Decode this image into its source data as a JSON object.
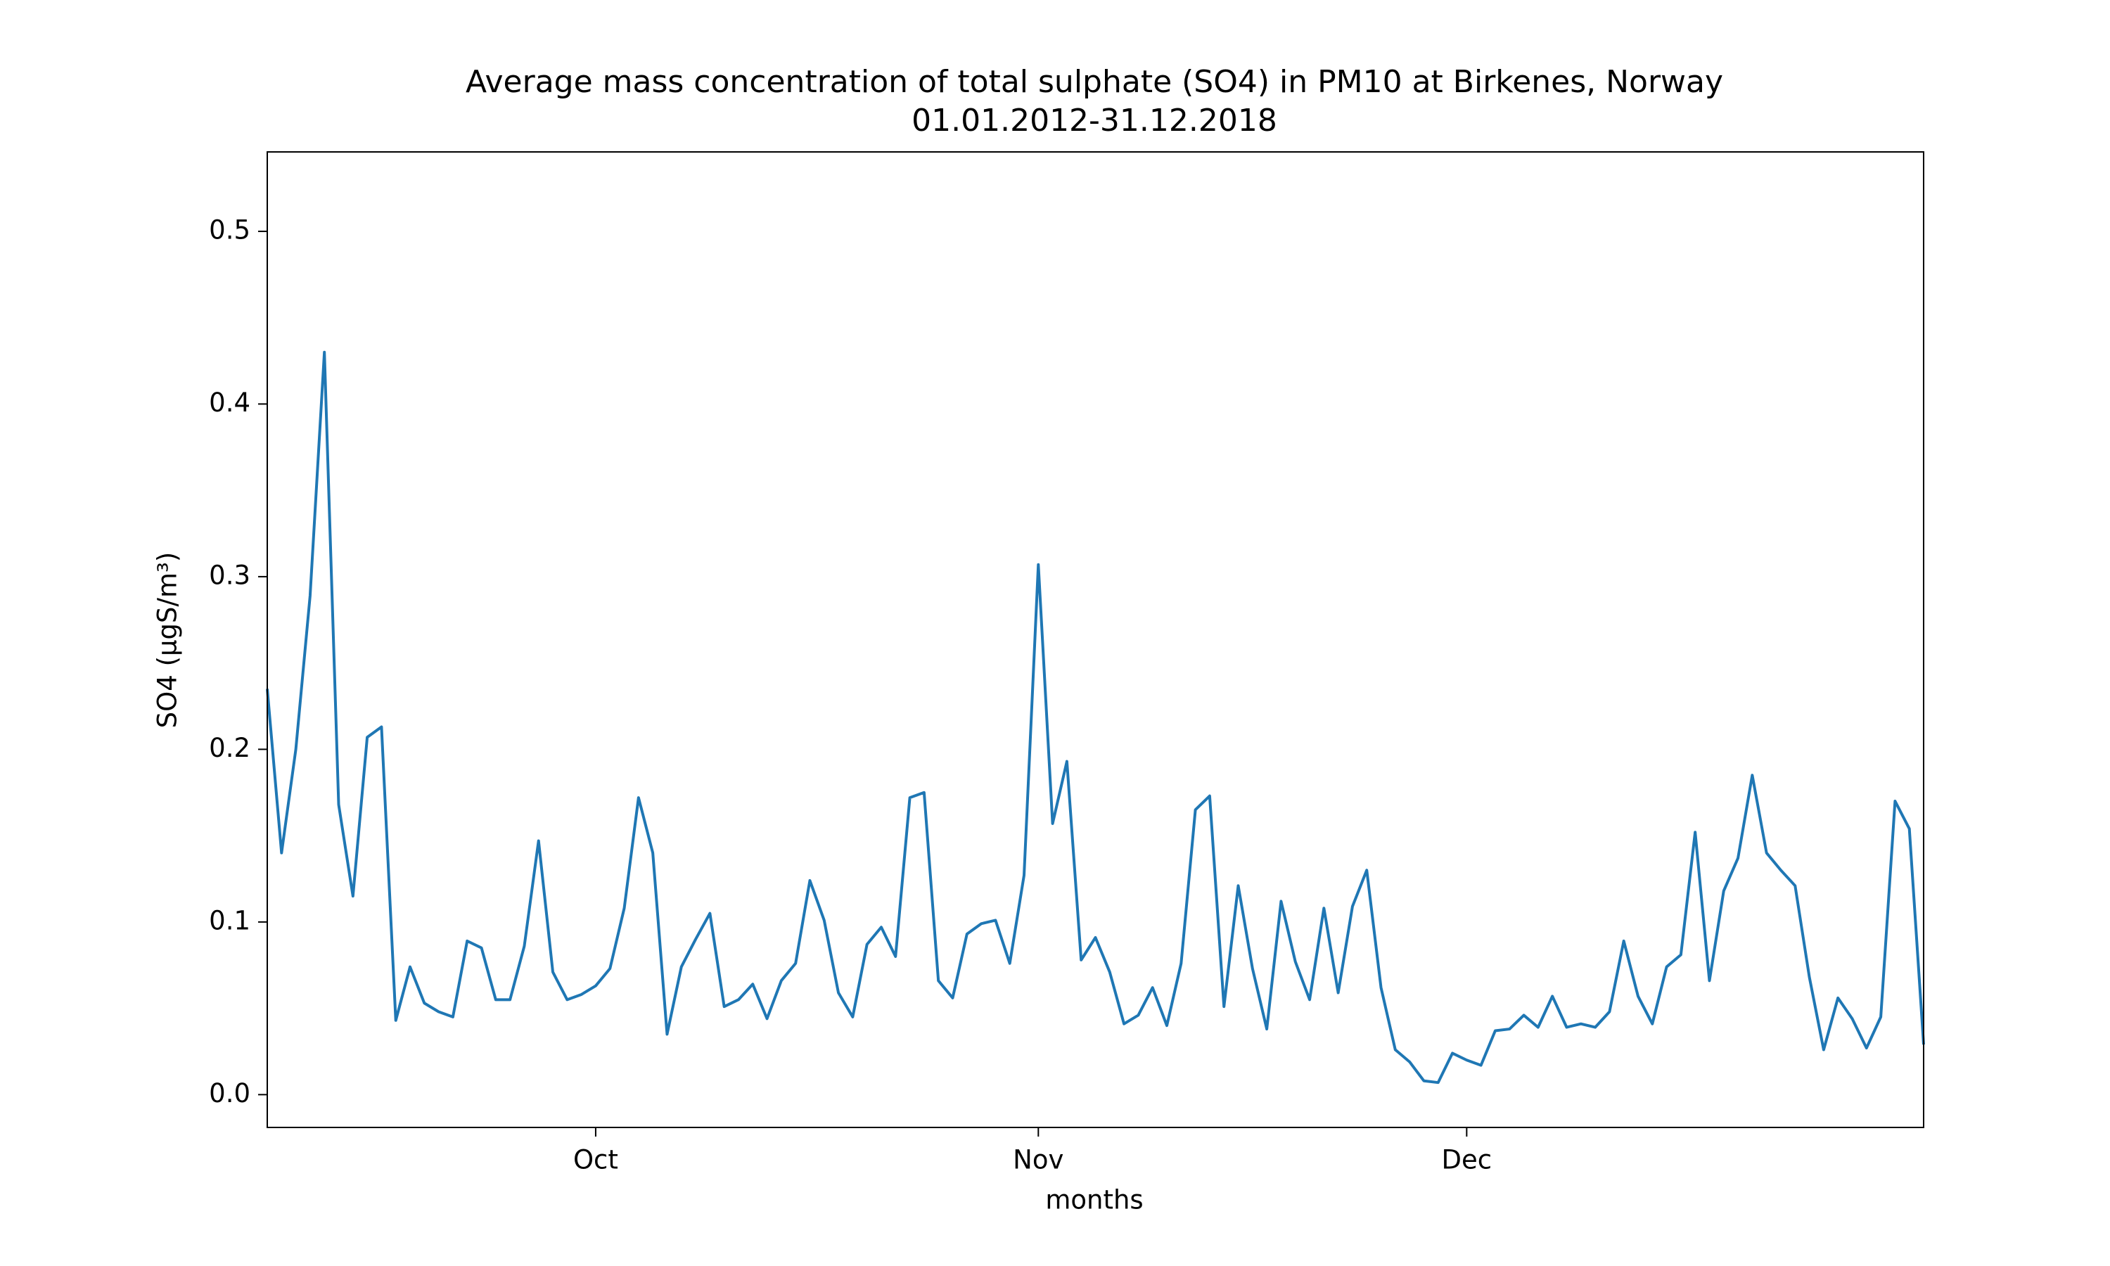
{
  "chart_data": {
    "type": "line",
    "title": "Average mass concentration of total sulphate (SO4) in PM10 at Birkenes, Norway",
    "subtitle": "01.01.2012-31.12.2018",
    "x_label": "months",
    "y_label": "SO4 (μgS/m³)",
    "x": [
      0,
      1,
      2,
      3,
      4,
      5,
      6,
      7,
      8,
      9,
      10,
      11,
      12,
      13,
      14,
      15,
      16,
      17,
      18,
      19,
      20,
      21,
      22,
      23,
      24,
      25,
      26,
      27,
      28,
      29,
      30,
      31,
      32,
      33,
      34,
      35,
      36,
      37,
      38,
      39,
      40,
      41,
      42,
      43,
      44,
      45,
      46,
      47,
      48,
      49,
      50,
      51,
      52,
      53,
      54,
      55,
      56,
      57,
      58,
      59,
      60,
      61,
      62,
      63,
      64,
      65,
      66,
      67,
      68,
      69,
      70,
      71,
      72,
      73,
      74,
      75,
      76,
      77,
      78,
      79,
      80,
      81,
      82,
      83,
      84,
      85,
      86,
      87,
      88,
      89,
      90,
      91,
      92,
      93,
      94,
      95,
      96,
      97,
      98,
      99,
      100,
      101,
      102,
      103,
      104,
      105,
      106,
      107,
      108,
      109,
      110,
      111,
      112,
      113,
      114,
      115,
      116
    ],
    "series": [
      {
        "name": "SO4",
        "color": "#1f77b4",
        "values": [
          0.235,
          0.14,
          0.2,
          0.289,
          0.43,
          0.168,
          0.115,
          0.207,
          0.213,
          0.043,
          0.074,
          0.053,
          0.048,
          0.045,
          0.089,
          0.085,
          0.055,
          0.055,
          0.086,
          0.147,
          0.071,
          0.055,
          0.058,
          0.063,
          0.073,
          0.108,
          0.172,
          0.14,
          0.035,
          0.074,
          0.09,
          0.105,
          0.051,
          0.055,
          0.064,
          0.044,
          0.066,
          0.076,
          0.124,
          0.101,
          0.059,
          0.045,
          0.087,
          0.097,
          0.08,
          0.172,
          0.175,
          0.066,
          0.056,
          0.093,
          0.099,
          0.101,
          0.076,
          0.127,
          0.307,
          0.157,
          0.193,
          0.078,
          0.091,
          0.071,
          0.041,
          0.046,
          0.062,
          0.04,
          0.076,
          0.165,
          0.173,
          0.051,
          0.121,
          0.073,
          0.038,
          0.112,
          0.077,
          0.055,
          0.108,
          0.059,
          0.109,
          0.13,
          0.062,
          0.026,
          0.019,
          0.008,
          0.007,
          0.024,
          0.02,
          0.017,
          0.037,
          0.038,
          0.046,
          0.039,
          0.057,
          0.039,
          0.041,
          0.039,
          0.048,
          0.089,
          0.057,
          0.041,
          0.074,
          0.081,
          0.152,
          0.066,
          0.118,
          0.137,
          0.185,
          0.14,
          0.13,
          0.121,
          0.068,
          0.026,
          0.056,
          0.044,
          0.027,
          0.045,
          0.17,
          0.154,
          0.029
        ]
      }
    ],
    "xlim": [
      0,
      116
    ],
    "xticks": [
      {
        "value": 23,
        "label": "Oct"
      },
      {
        "value": 54,
        "label": "Nov"
      },
      {
        "value": 84,
        "label": "Dec"
      }
    ],
    "ylim": [
      -0.019,
      0.546
    ],
    "yticks": [
      {
        "value": 0,
        "label": "0.0"
      },
      0.1,
      0.2,
      0.3,
      0.4,
      0.5
    ],
    "grid": false
  }
}
